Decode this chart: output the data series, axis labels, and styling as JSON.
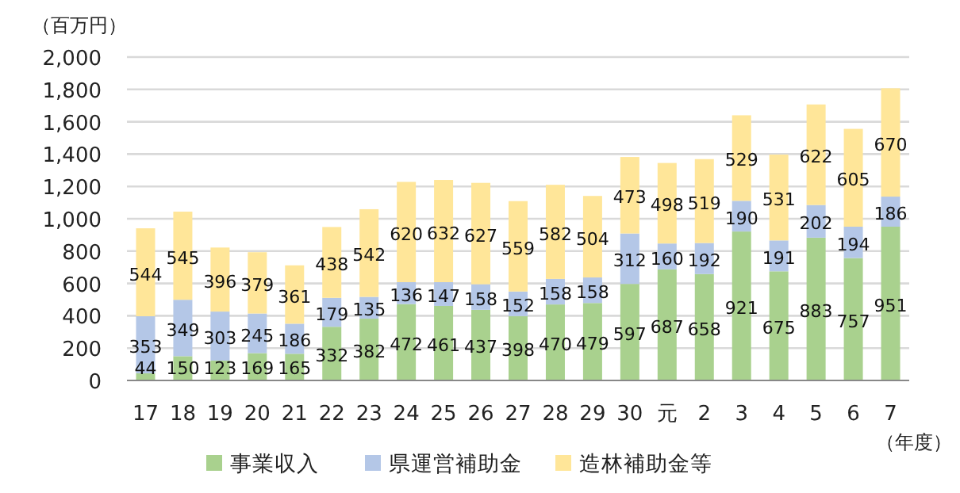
{
  "chart_data": {
    "type": "bar",
    "stacked": true,
    "ylabel": "（百万円）",
    "xlabel": "（年度）",
    "categories": [
      "17",
      "18",
      "19",
      "20",
      "21",
      "22",
      "23",
      "24",
      "25",
      "26",
      "27",
      "28",
      "29",
      "30",
      "元",
      "2",
      "3",
      "4",
      "5",
      "6",
      "7"
    ],
    "series": [
      {
        "name": "事業収入",
        "color": "#a9d18e",
        "values": [
          44,
          150,
          123,
          169,
          165,
          332,
          382,
          472,
          461,
          437,
          398,
          470,
          479,
          597,
          687,
          658,
          921,
          675,
          883,
          757,
          951
        ]
      },
      {
        "name": "県運営補助金",
        "color": "#b4c7e7",
        "values": [
          353,
          349,
          303,
          245,
          186,
          179,
          135,
          136,
          147,
          158,
          152,
          158,
          158,
          312,
          160,
          192,
          190,
          191,
          202,
          194,
          186
        ]
      },
      {
        "name": "造林補助金等",
        "color": "#ffe699",
        "values": [
          544,
          545,
          396,
          379,
          361,
          438,
          542,
          620,
          632,
          627,
          559,
          582,
          504,
          473,
          498,
          519,
          529,
          531,
          622,
          605,
          670
        ]
      }
    ],
    "ylim": [
      0,
      2000
    ],
    "yticks": [
      0,
      {
        "value": 200,
        "label": "200"
      },
      400,
      600,
      800,
      {
        "value": 1000,
        "label": "1,000"
      },
      {
        "value": 1200,
        "label": "1,200"
      },
      {
        "value": 1400,
        "label": "1,400"
      },
      {
        "value": 1600,
        "label": "1,600"
      },
      {
        "value": 1800,
        "label": "1,800"
      },
      {
        "value": 2000,
        "label": "2,000"
      }
    ],
    "grid": "y",
    "legend": "bottom",
    "data_labels": true
  }
}
